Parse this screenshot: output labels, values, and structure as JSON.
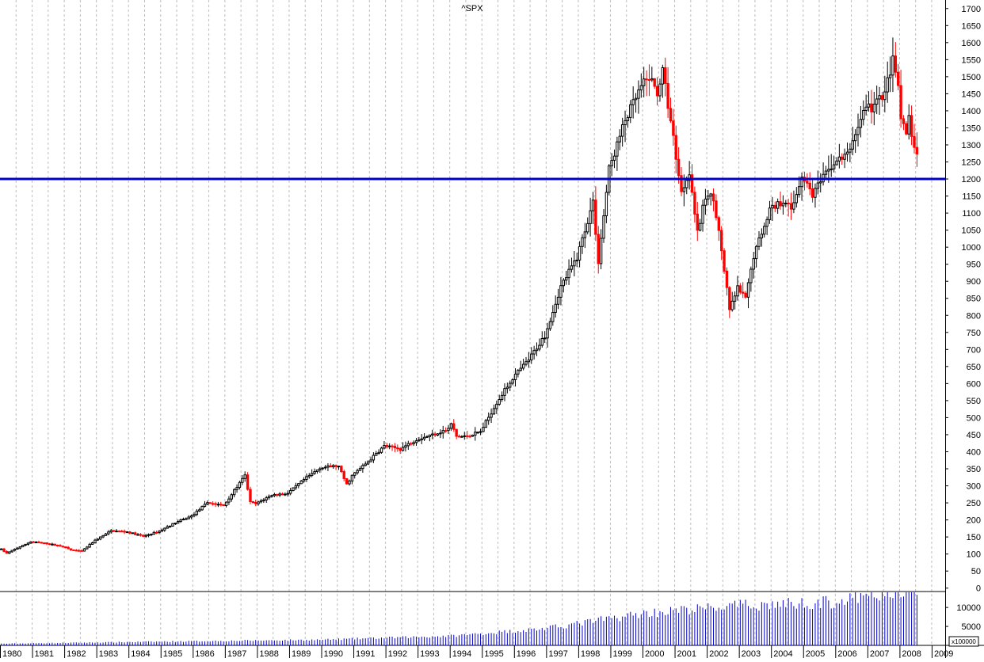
{
  "chart_data": {
    "type": "candlestick",
    "title": "^SPX",
    "frequency": "monthly",
    "up_color": "#000000",
    "down_color": "#ff0000",
    "reference_line": {
      "value": 1200,
      "color": "#0000cc"
    },
    "price_axis": {
      "range": [
        -10,
        1725
      ],
      "ticks": [
        0,
        50,
        100,
        150,
        200,
        250,
        300,
        350,
        400,
        450,
        500,
        550,
        600,
        650,
        700,
        750,
        800,
        850,
        900,
        950,
        1000,
        1050,
        1100,
        1150,
        1200,
        1250,
        1300,
        1350,
        1400,
        1450,
        1500,
        1550,
        1600,
        1650,
        1700
      ]
    },
    "volume_axis": {
      "range": [
        0,
        14000
      ],
      "ticks": [
        5000,
        10000
      ],
      "unit_label": "x100000",
      "bar_color": "#0000cc"
    },
    "time_axis": {
      "years": [
        "1980",
        "1981",
        "1982",
        "1983",
        "1984",
        "1985",
        "1986",
        "1987",
        "1988",
        "1989",
        "1990",
        "1991",
        "1992",
        "1993",
        "1994",
        "1995",
        "1996",
        "1997",
        "1998",
        "1999",
        "2000",
        "2001",
        "2002",
        "2003",
        "2004",
        "2005",
        "2006",
        "2007",
        "2008",
        "2009"
      ]
    },
    "price_path": [
      [
        "1980-01",
        114
      ],
      [
        "1980-03",
        102
      ],
      [
        "1980-06",
        114
      ],
      [
        "1980-12",
        136
      ],
      [
        "1981-06",
        131
      ],
      [
        "1981-12",
        122
      ],
      [
        "1982-03",
        112
      ],
      [
        "1982-07",
        108
      ],
      [
        "1982-12",
        140
      ],
      [
        "1983-06",
        168
      ],
      [
        "1983-12",
        165
      ],
      [
        "1984-06",
        152
      ],
      [
        "1984-12",
        167
      ],
      [
        "1985-06",
        192
      ],
      [
        "1985-12",
        211
      ],
      [
        "1986-06",
        251
      ],
      [
        "1986-12",
        242
      ],
      [
        "1987-08",
        330
      ],
      [
        "1987-10",
        252
      ],
      [
        "1987-12",
        247
      ],
      [
        "1988-06",
        273
      ],
      [
        "1988-12",
        278
      ],
      [
        "1989-06",
        318
      ],
      [
        "1989-12",
        353
      ],
      [
        "1990-06",
        358
      ],
      [
        "1990-07",
        356
      ],
      [
        "1990-10",
        304
      ],
      [
        "1990-12",
        330
      ],
      [
        "1991-06",
        371
      ],
      [
        "1991-12",
        417
      ],
      [
        "1992-06",
        408
      ],
      [
        "1992-12",
        436
      ],
      [
        "1993-06",
        450
      ],
      [
        "1993-12",
        466
      ],
      [
        "1994-01",
        482
      ],
      [
        "1994-03",
        445
      ],
      [
        "1994-06",
        444
      ],
      [
        "1994-12",
        459
      ],
      [
        "1995-06",
        544
      ],
      [
        "1995-12",
        616
      ],
      [
        "1996-06",
        670
      ],
      [
        "1996-12",
        741
      ],
      [
        "1997-06",
        885
      ],
      [
        "1997-12",
        970
      ],
      [
        "1998-06",
        1133
      ],
      [
        "1998-08",
        957
      ],
      [
        "1998-12",
        1229
      ],
      [
        "1999-06",
        1372
      ],
      [
        "1999-12",
        1469
      ],
      [
        "2000-03",
        1499
      ],
      [
        "2000-06",
        1454
      ],
      [
        "2000-08",
        1517
      ],
      [
        "2000-12",
        1320
      ],
      [
        "2001-03",
        1160
      ],
      [
        "2001-06",
        1224
      ],
      [
        "2001-09",
        1040
      ],
      [
        "2001-12",
        1148
      ],
      [
        "2002-03",
        1147
      ],
      [
        "2002-06",
        990
      ],
      [
        "2002-09",
        815
      ],
      [
        "2002-12",
        880
      ],
      [
        "2003-03",
        848
      ],
      [
        "2003-06",
        975
      ],
      [
        "2003-12",
        1112
      ],
      [
        "2004-06",
        1140
      ],
      [
        "2004-08",
        1104
      ],
      [
        "2004-12",
        1212
      ],
      [
        "2005-04",
        1156
      ],
      [
        "2005-12",
        1248
      ],
      [
        "2006-05",
        1270
      ],
      [
        "2006-12",
        1418
      ],
      [
        "2007-02",
        1406
      ],
      [
        "2007-07",
        1455
      ],
      [
        "2007-10",
        1549
      ],
      [
        "2007-12",
        1468
      ],
      [
        "2008-01",
        1378
      ],
      [
        "2008-03",
        1322
      ],
      [
        "2008-04",
        1385
      ],
      [
        "2008-06",
        1280
      ],
      [
        "2008-07",
        1267
      ]
    ],
    "volume_path": [
      [
        "1980-01",
        450
      ],
      [
        "1985-01",
        1000
      ],
      [
        "1990-01",
        1500
      ],
      [
        "1994-01",
        2500
      ],
      [
        "1997-01",
        4500
      ],
      [
        "2000-01",
        8500
      ],
      [
        "2003-01",
        10500
      ],
      [
        "2006-01",
        11500
      ],
      [
        "2007-07",
        13500
      ],
      [
        "2008-06",
        15500
      ]
    ]
  }
}
